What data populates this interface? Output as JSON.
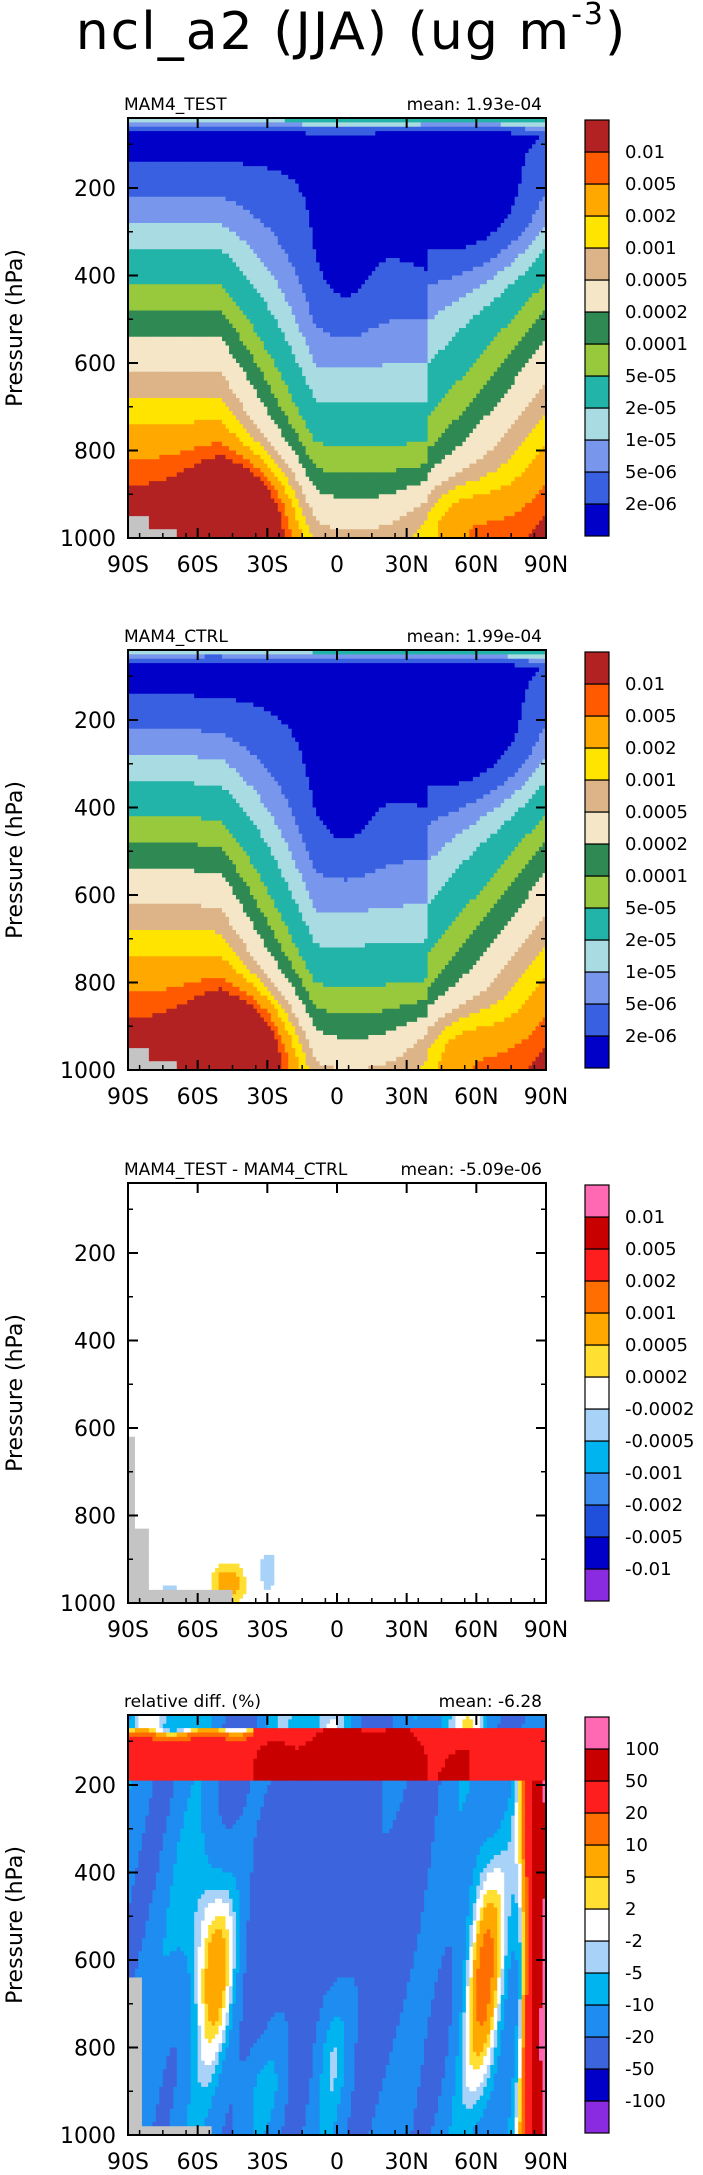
{
  "page_title": {
    "text": "ncl_a2 (JJA) (ug m",
    "exponent": "-3",
    "close": ")"
  },
  "chart_data": [
    {
      "type": "heatmap",
      "left_title": "MAM4_TEST",
      "right_title": "mean: 1.93e-04",
      "ylabel": "Pressure (hPa)",
      "x_ticks": [
        "90S",
        "60S",
        "30S",
        "0",
        "30N",
        "60N",
        "90N"
      ],
      "x_range": [
        -90,
        90
      ],
      "y_ticks": [
        "200",
        "400",
        "600",
        "800",
        "1000"
      ],
      "y_range": [
        1000,
        40
      ],
      "y_reversed": true,
      "colorbar_levels": [
        "2e-06",
        "5e-06",
        "1e-05",
        "2e-05",
        "5e-05",
        "0.0001",
        "0.0002",
        "0.0005",
        "0.001",
        "0.002",
        "0.005",
        "0.01"
      ],
      "colorbar_colors": [
        "#0000c8",
        "#3860e0",
        "#7896ec",
        "#a8dce2",
        "#22b4a8",
        "#98c83c",
        "#2e8a52",
        "#f4e6c6",
        "#dcb488",
        "#ffe400",
        "#ffa800",
        "#ff5a00",
        "#b22222"
      ]
    },
    {
      "type": "heatmap",
      "left_title": "MAM4_CTRL",
      "right_title": "mean: 1.99e-04",
      "ylabel": "Pressure (hPa)",
      "x_ticks": [
        "90S",
        "60S",
        "30S",
        "0",
        "30N",
        "60N",
        "90N"
      ],
      "x_range": [
        -90,
        90
      ],
      "y_ticks": [
        "200",
        "400",
        "600",
        "800",
        "1000"
      ],
      "y_range": [
        1000,
        40
      ],
      "y_reversed": true,
      "colorbar_levels": [
        "2e-06",
        "5e-06",
        "1e-05",
        "2e-05",
        "5e-05",
        "0.0001",
        "0.0002",
        "0.0005",
        "0.001",
        "0.002",
        "0.005",
        "0.01"
      ],
      "colorbar_colors": [
        "#0000c8",
        "#3860e0",
        "#7896ec",
        "#a8dce2",
        "#22b4a8",
        "#98c83c",
        "#2e8a52",
        "#f4e6c6",
        "#dcb488",
        "#ffe400",
        "#ffa800",
        "#ff5a00",
        "#b22222"
      ]
    },
    {
      "type": "heatmap",
      "left_title": "MAM4_TEST - MAM4_CTRL",
      "right_title": "mean: -5.09e-06",
      "ylabel": "Pressure (hPa)",
      "x_ticks": [
        "90S",
        "60S",
        "30S",
        "0",
        "30N",
        "60N",
        "90N"
      ],
      "x_range": [
        -90,
        90
      ],
      "y_ticks": [
        "200",
        "400",
        "600",
        "800",
        "1000"
      ],
      "y_range": [
        1000,
        40
      ],
      "y_reversed": true,
      "colorbar_levels": [
        "-0.01",
        "-0.005",
        "-0.002",
        "-0.001",
        "-0.0005",
        "-0.0002",
        "0.0002",
        "0.0005",
        "0.001",
        "0.002",
        "0.005",
        "0.01"
      ],
      "colorbar_colors": [
        "#8a2be2",
        "#0000c8",
        "#1e50dc",
        "#3c8cf0",
        "#00b4f0",
        "#a8d2f8",
        "#ffffff",
        "#ffe032",
        "#ffa800",
        "#ff6e00",
        "#ff1e1e",
        "#c80000",
        "#ff69b4"
      ]
    },
    {
      "type": "heatmap",
      "left_title": "relative diff. (%)",
      "right_title": "mean: -6.28",
      "ylabel": "Pressure (hPa)",
      "x_ticks": [
        "90S",
        "60S",
        "30S",
        "0",
        "30N",
        "60N",
        "90N"
      ],
      "x_range": [
        -90,
        90
      ],
      "y_ticks": [
        "200",
        "400",
        "600",
        "800",
        "1000"
      ],
      "y_range": [
        1000,
        40
      ],
      "y_reversed": true,
      "colorbar_levels": [
        "-100",
        "-50",
        "-20",
        "-10",
        "-5",
        "-2",
        "2",
        "5",
        "10",
        "20",
        "50",
        "100"
      ],
      "colorbar_colors": [
        "#8a2be2",
        "#0000c8",
        "#3c64dc",
        "#1e8cf0",
        "#00b4f0",
        "#a8d2f8",
        "#ffffff",
        "#ffe032",
        "#ffa800",
        "#ff6e00",
        "#ff1e1e",
        "#c80000",
        "#ff69b4"
      ]
    }
  ]
}
